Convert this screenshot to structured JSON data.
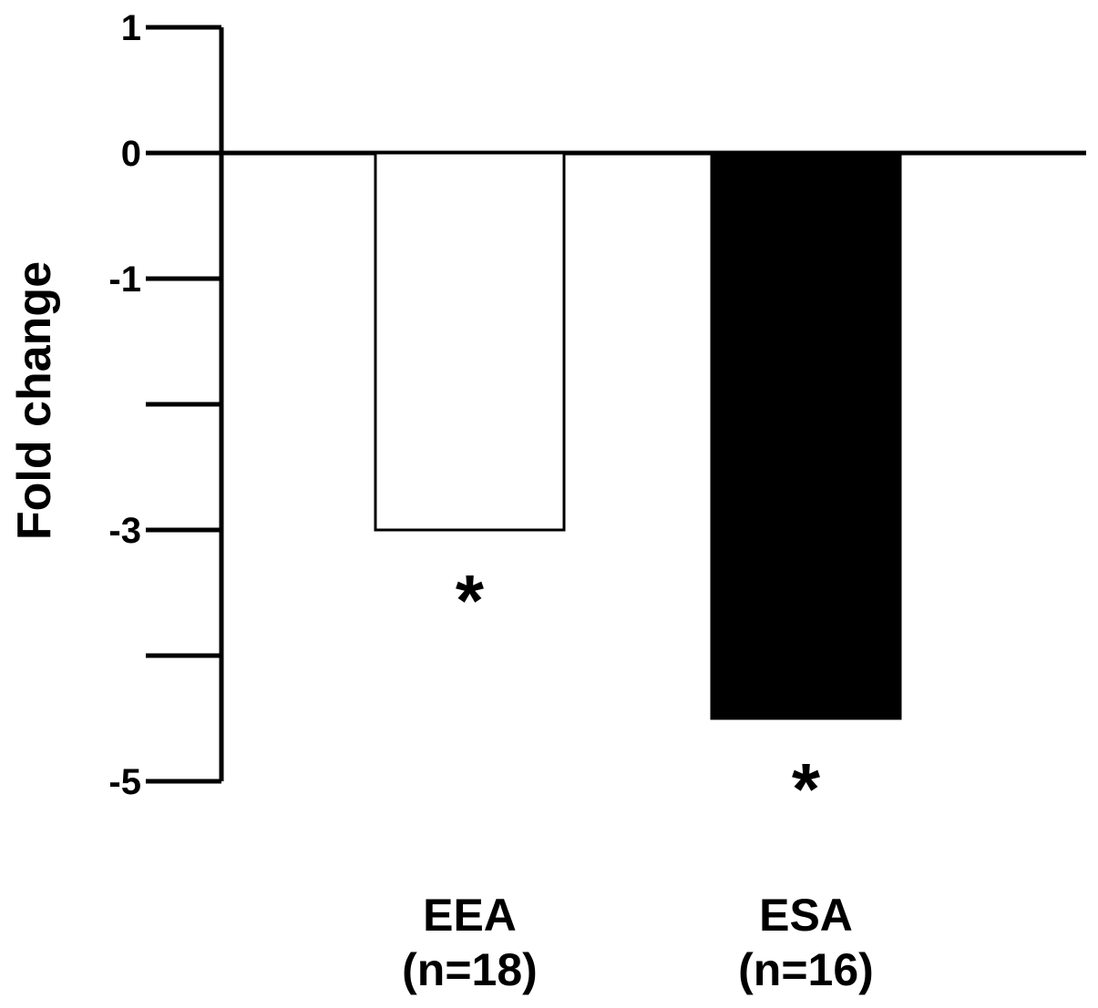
{
  "chart_data": {
    "type": "bar",
    "categories": [
      "EEA",
      "ESA"
    ],
    "category_sublabels": [
      "(n=18)",
      "(n=16)"
    ],
    "values": [
      -3,
      -4.5
    ],
    "bar_fill": [
      "#ffffff",
      "#000000"
    ],
    "bar_stroke": "#000000",
    "annotations": [
      "*",
      "*"
    ],
    "ylabel": "Fold change",
    "xlabel": "",
    "title": "",
    "ylim": [
      -5,
      1
    ],
    "yticks": [
      1,
      0,
      -1,
      -2,
      -3,
      -4,
      -5
    ],
    "ytick_labels": [
      "1",
      "0",
      "-1",
      "",
      "-3",
      "",
      "-5"
    ],
    "grid": false,
    "legend": "none"
  }
}
